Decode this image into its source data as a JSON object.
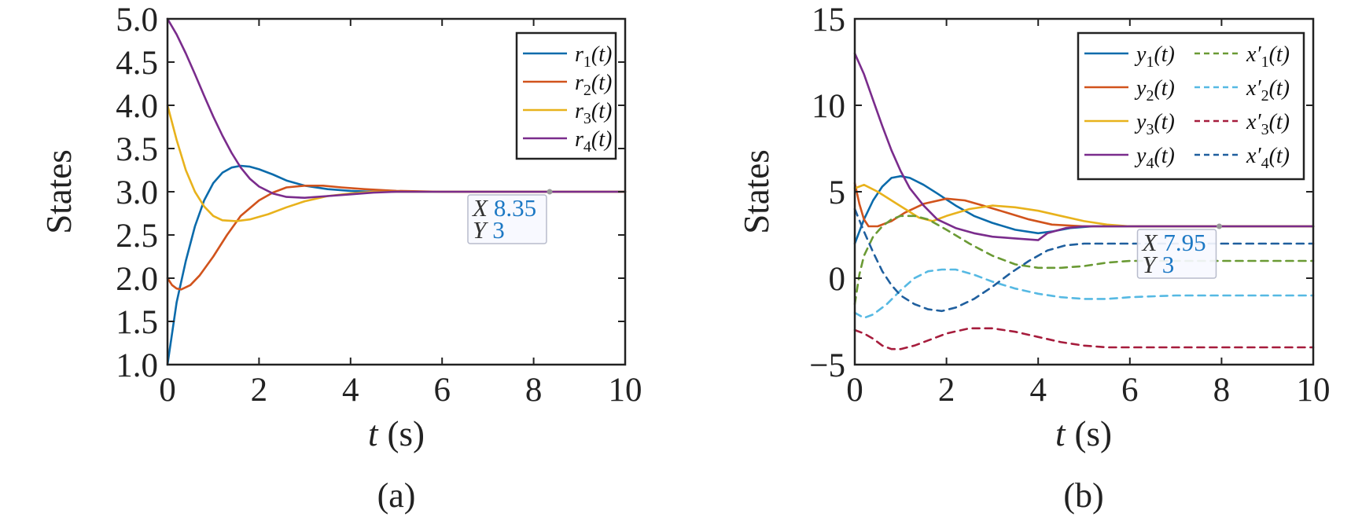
{
  "chart_data": [
    {
      "id": "a",
      "type": "line",
      "panel_label": "(a)",
      "ylabel": "States",
      "xlabel_var": "t",
      "xlabel_unit": "(s)",
      "xlim": [
        0,
        10
      ],
      "ylim": [
        1.0,
        5.0
      ],
      "xticks": [
        "0",
        "2",
        "4",
        "6",
        "8",
        "10"
      ],
      "yticks": [
        "1.0",
        "1.5",
        "2.0",
        "2.5",
        "3.0",
        "3.5",
        "4.0",
        "4.5",
        "5.0"
      ],
      "legend_position": "top-right",
      "series": [
        {
          "name": "r",
          "subscript": "1",
          "arg": "(t)",
          "color": "#0b6bab",
          "dash": false,
          "x": [
            0,
            0.2,
            0.4,
            0.6,
            0.8,
            1.0,
            1.2,
            1.4,
            1.6,
            1.8,
            2.0,
            2.3,
            2.6,
            3.0,
            3.5,
            4.0,
            4.5,
            5.0,
            6.0,
            7.0,
            8.0,
            9.0,
            10.0
          ],
          "y": [
            1.0,
            1.72,
            2.2,
            2.6,
            2.9,
            3.1,
            3.22,
            3.28,
            3.3,
            3.29,
            3.26,
            3.2,
            3.13,
            3.07,
            3.03,
            3.01,
            3.0,
            3.0,
            3.0,
            3.0,
            3.0,
            3.0,
            3.0
          ]
        },
        {
          "name": "r",
          "subscript": "2",
          "arg": "(t)",
          "color": "#d1531c",
          "dash": false,
          "x": [
            0,
            0.1,
            0.2,
            0.3,
            0.5,
            0.7,
            1.0,
            1.3,
            1.6,
            2.0,
            2.3,
            2.6,
            3.0,
            3.4,
            3.8,
            4.3,
            5.0,
            6.0,
            7.0,
            8.0,
            9.0,
            10.0
          ],
          "y": [
            2.0,
            1.92,
            1.88,
            1.87,
            1.92,
            2.03,
            2.25,
            2.5,
            2.72,
            2.9,
            2.99,
            3.05,
            3.07,
            3.07,
            3.05,
            3.03,
            3.01,
            3.0,
            3.0,
            3.0,
            3.0,
            3.0
          ]
        },
        {
          "name": "r",
          "subscript": "3",
          "arg": "(t)",
          "color": "#e8b21c",
          "dash": false,
          "x": [
            0,
            0.2,
            0.4,
            0.6,
            0.8,
            1.0,
            1.2,
            1.5,
            1.8,
            2.2,
            2.6,
            3.0,
            3.5,
            4.0,
            4.5,
            5.0,
            6.0,
            7.0,
            8.0,
            9.0,
            10.0
          ],
          "y": [
            4.0,
            3.6,
            3.25,
            3.0,
            2.83,
            2.72,
            2.67,
            2.66,
            2.68,
            2.74,
            2.82,
            2.89,
            2.95,
            2.98,
            3.0,
            3.0,
            3.0,
            3.0,
            3.0,
            3.0,
            3.0
          ]
        },
        {
          "name": "r",
          "subscript": "4",
          "arg": "(t)",
          "color": "#7a2c8c",
          "dash": false,
          "x": [
            0,
            0.2,
            0.4,
            0.6,
            0.8,
            1.0,
            1.2,
            1.4,
            1.6,
            1.8,
            2.0,
            2.3,
            2.6,
            3.0,
            3.5,
            4.0,
            4.5,
            5.0,
            6.0,
            7.0,
            8.0,
            9.0,
            10.0
          ],
          "y": [
            5.0,
            4.82,
            4.6,
            4.36,
            4.11,
            3.87,
            3.65,
            3.45,
            3.28,
            3.15,
            3.06,
            2.98,
            2.94,
            2.93,
            2.95,
            2.97,
            2.99,
            3.0,
            3.0,
            3.0,
            3.0,
            3.0,
            3.0
          ]
        }
      ],
      "datatip": {
        "x_key": "X",
        "x": "8.35",
        "y_key": "Y",
        "y": "3"
      }
    },
    {
      "id": "b",
      "type": "line",
      "panel_label": "(b)",
      "ylabel": "States",
      "xlabel_var": "t",
      "xlabel_unit": "(s)",
      "xlim": [
        0,
        10
      ],
      "ylim": [
        -5,
        15
      ],
      "xticks": [
        "0",
        "2",
        "4",
        "6",
        "8",
        "10"
      ],
      "yticks": [
        "−5",
        "0",
        "5",
        "10",
        "15"
      ],
      "legend_position": "top-right",
      "series": [
        {
          "name": "y",
          "subscript": "1",
          "arg": "(t)",
          "color": "#0b6bab",
          "dash": false,
          "x": [
            0,
            0.2,
            0.4,
            0.6,
            0.8,
            1.0,
            1.2,
            1.5,
            1.8,
            2.2,
            2.6,
            3.0,
            3.5,
            4.0,
            4.3,
            4.7,
            5.2,
            6.0,
            7.0,
            8.0,
            9.0,
            10.0
          ],
          "y": [
            2.0,
            3.4,
            4.5,
            5.3,
            5.8,
            5.9,
            5.8,
            5.4,
            4.9,
            4.2,
            3.6,
            3.2,
            2.8,
            2.6,
            2.7,
            2.9,
            3.0,
            3.0,
            3.0,
            3.0,
            3.0,
            3.0
          ]
        },
        {
          "name": "y",
          "subscript": "2",
          "arg": "(t)",
          "color": "#d1531c",
          "dash": false,
          "x": [
            0,
            0.1,
            0.2,
            0.3,
            0.5,
            0.8,
            1.1,
            1.5,
            2.0,
            2.4,
            2.8,
            3.3,
            3.8,
            4.3,
            5.0,
            6.0,
            7.0,
            8.0,
            9.0,
            10.0
          ],
          "y": [
            5.5,
            4.3,
            3.4,
            3.0,
            3.0,
            3.3,
            3.8,
            4.3,
            4.6,
            4.5,
            4.2,
            3.8,
            3.4,
            3.1,
            3.0,
            3.0,
            3.0,
            3.0,
            3.0,
            3.0
          ]
        },
        {
          "name": "y",
          "subscript": "3",
          "arg": "(t)",
          "color": "#e8b21c",
          "dash": false,
          "x": [
            0,
            0.2,
            0.5,
            0.8,
            1.1,
            1.4,
            1.7,
            2.0,
            2.5,
            3.0,
            3.5,
            4.0,
            4.5,
            5.0,
            5.5,
            6.0,
            7.0,
            8.0,
            9.0,
            10.0
          ],
          "y": [
            5.2,
            5.4,
            5.0,
            4.5,
            4.0,
            3.5,
            3.3,
            3.6,
            4.0,
            4.2,
            4.1,
            3.9,
            3.6,
            3.3,
            3.1,
            3.0,
            3.0,
            3.0,
            3.0,
            3.0
          ]
        },
        {
          "name": "y",
          "subscript": "4",
          "arg": "(t)",
          "color": "#7a2c8c",
          "dash": false,
          "x": [
            0,
            0.2,
            0.4,
            0.6,
            0.8,
            1.0,
            1.2,
            1.5,
            1.8,
            2.2,
            2.6,
            3.0,
            3.5,
            4.0,
            4.2,
            4.6,
            5.0,
            5.5,
            6.0,
            7.0,
            8.0,
            9.0,
            10.0
          ],
          "y": [
            13.0,
            11.8,
            10.3,
            8.8,
            7.4,
            6.2,
            5.2,
            4.2,
            3.4,
            2.9,
            2.6,
            2.4,
            2.3,
            2.2,
            2.6,
            2.9,
            3.0,
            3.0,
            3.0,
            3.0,
            3.0,
            3.0,
            3.0
          ]
        },
        {
          "name": "x",
          "subscript": "1",
          "prime": "′",
          "arg": "(t)",
          "color": "#6a9a34",
          "dash": true,
          "x": [
            0,
            0.1,
            0.2,
            0.4,
            0.6,
            0.8,
            1.0,
            1.3,
            1.6,
            2.0,
            2.5,
            3.0,
            3.5,
            4.0,
            4.5,
            5.0,
            5.5,
            6.0,
            7.0,
            8.0,
            9.0,
            10.0
          ],
          "y": [
            -1.5,
            0.2,
            1.3,
            2.4,
            3.0,
            3.4,
            3.6,
            3.6,
            3.4,
            2.8,
            2.0,
            1.3,
            0.8,
            0.6,
            0.6,
            0.7,
            0.9,
            1.0,
            1.0,
            1.0,
            1.0,
            1.0
          ]
        },
        {
          "name": "x",
          "subscript": "2",
          "prime": "′",
          "arg": "(t)",
          "color": "#56b9e3",
          "dash": true,
          "x": [
            0,
            0.2,
            0.4,
            0.7,
            1.0,
            1.3,
            1.6,
            1.9,
            2.2,
            2.6,
            3.0,
            3.5,
            4.0,
            4.5,
            5.0,
            5.5,
            6.0,
            7.0,
            8.0,
            9.0,
            10.0
          ],
          "y": [
            -2.0,
            -2.3,
            -2.1,
            -1.5,
            -0.7,
            0.0,
            0.4,
            0.5,
            0.5,
            0.2,
            -0.2,
            -0.6,
            -0.9,
            -1.1,
            -1.2,
            -1.2,
            -1.1,
            -1.0,
            -1.0,
            -1.0,
            -1.0
          ]
        },
        {
          "name": "x",
          "subscript": "3",
          "prime": "′",
          "arg": "(t)",
          "color": "#a61c3c",
          "dash": true,
          "x": [
            0,
            0.2,
            0.4,
            0.6,
            0.8,
            1.0,
            1.3,
            1.6,
            2.0,
            2.5,
            3.0,
            3.5,
            4.0,
            4.5,
            5.0,
            5.5,
            6.0,
            7.0,
            8.0,
            9.0,
            10.0
          ],
          "y": [
            -3.0,
            -3.2,
            -3.5,
            -3.9,
            -4.1,
            -4.1,
            -3.9,
            -3.6,
            -3.2,
            -2.9,
            -2.9,
            -3.1,
            -3.4,
            -3.7,
            -3.9,
            -4.0,
            -4.0,
            -4.0,
            -4.0,
            -4.0,
            -4.0
          ]
        },
        {
          "name": "x",
          "subscript": "4",
          "prime": "′",
          "arg": "(t)",
          "color": "#1f5f9e",
          "dash": true,
          "x": [
            0,
            0.2,
            0.4,
            0.6,
            0.8,
            1.0,
            1.3,
            1.6,
            1.9,
            2.2,
            2.6,
            3.0,
            3.4,
            3.8,
            4.2,
            4.6,
            5.0,
            5.5,
            6.0,
            7.0,
            8.0,
            9.0,
            10.0
          ],
          "y": [
            4.0,
            2.7,
            1.5,
            0.4,
            -0.4,
            -1.0,
            -1.5,
            -1.8,
            -1.9,
            -1.7,
            -1.2,
            -0.5,
            0.3,
            1.0,
            1.6,
            1.9,
            2.0,
            2.0,
            2.0,
            2.0,
            2.0,
            2.0,
            2.0
          ]
        }
      ],
      "datatip": {
        "x_key": "X",
        "x": "7.95",
        "y_key": "Y",
        "y": "3"
      }
    }
  ]
}
